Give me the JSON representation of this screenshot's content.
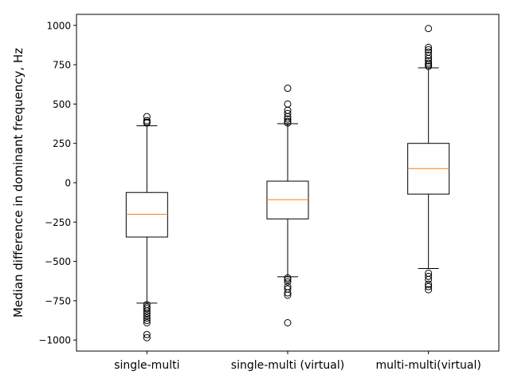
{
  "chart_data": {
    "type": "box",
    "title": "",
    "xlabel": "",
    "ylabel": "Median difference in dominant frequency, Hz",
    "ylim": [
      -1070,
      1070
    ],
    "yticks": [
      -1000,
      -750,
      -500,
      -250,
      0,
      250,
      500,
      750,
      1000
    ],
    "ytick_labels": [
      "−1000",
      "−750",
      "−500",
      "−250",
      "0",
      "250",
      "500",
      "750",
      "1000"
    ],
    "grid": false,
    "categories": [
      "single-multi",
      "single-multi (virtual)",
      "multi-multi(virtual)"
    ],
    "boxes": [
      {
        "whisker_low": -765,
        "q1": -345,
        "median": -200,
        "q3": -62,
        "whisker_high": 362,
        "outliers": [
          420,
          395,
          385,
          380,
          -775,
          -790,
          -800,
          -815,
          -830,
          -845,
          -860,
          -875,
          -890,
          -965,
          -985
        ]
      },
      {
        "whisker_low": -598,
        "q1": -230,
        "median": -108,
        "q3": 10,
        "whisker_high": 375,
        "outliers": [
          600,
          500,
          460,
          440,
          420,
          405,
          390,
          380,
          -605,
          -615,
          -630,
          -660,
          -675,
          -700,
          -715,
          -890
        ]
      },
      {
        "whisker_low": -545,
        "q1": -72,
        "median": 90,
        "q3": 250,
        "whisker_high": 730,
        "outliers": [
          980,
          860,
          845,
          830,
          810,
          790,
          775,
          760,
          750,
          740,
          -575,
          -595,
          -615,
          -645,
          -660,
          -680
        ]
      }
    ],
    "colors": {
      "box": "#000000",
      "median": "#ff7f0e",
      "outlier": "#000000"
    }
  }
}
